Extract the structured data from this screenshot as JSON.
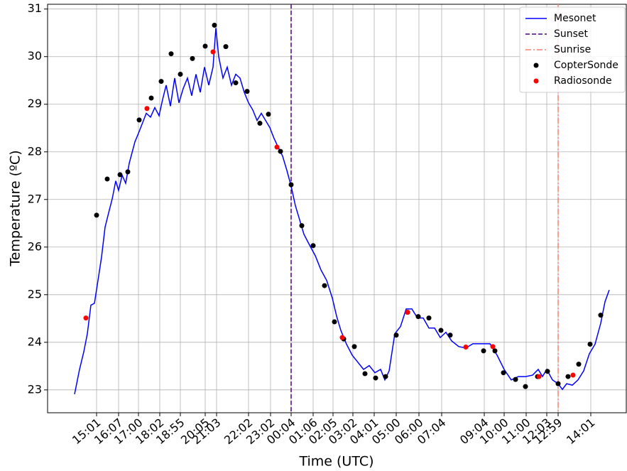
{
  "chart_data": {
    "type": "line",
    "xlabel": "Time (UTC)",
    "ylabel": "Temperature (ºC)",
    "xlim": [
      0,
      815
    ],
    "ylim": [
      22.52,
      31.1
    ],
    "xticks": [
      {
        "value": 69,
        "label": "15:01"
      },
      {
        "value": 100,
        "label": "16:07"
      },
      {
        "value": 128,
        "label": "17:00"
      },
      {
        "value": 158,
        "label": "18:02"
      },
      {
        "value": 187,
        "label": "18:55"
      },
      {
        "value": 222,
        "label": "20:05"
      },
      {
        "value": 238,
        "label": "21:03"
      },
      {
        "value": 283,
        "label": "22:02"
      },
      {
        "value": 314,
        "label": "23:02"
      },
      {
        "value": 343,
        "label": "00:04"
      },
      {
        "value": 374,
        "label": "01:06"
      },
      {
        "value": 402,
        "label": "02:05"
      },
      {
        "value": 430,
        "label": "03:02"
      },
      {
        "value": 460,
        "label": "04:01"
      },
      {
        "value": 491,
        "label": "05:00"
      },
      {
        "value": 523,
        "label": "06:00"
      },
      {
        "value": 555,
        "label": "07:04"
      },
      {
        "value": 615,
        "label": "09:04"
      },
      {
        "value": 643,
        "label": "10:00"
      },
      {
        "value": 674,
        "label": "11:00"
      },
      {
        "value": 703,
        "label": "12:03"
      },
      {
        "value": 719,
        "label": "12:59"
      },
      {
        "value": 765,
        "label": "14:01"
      }
    ],
    "yticks": [
      23,
      24,
      25,
      26,
      27,
      28,
      29,
      30,
      31
    ],
    "grid": true,
    "legend": "upper right",
    "series": [
      {
        "name": "Mesonet",
        "type": "line",
        "color": "#0000ff",
        "x": [
          38,
          45,
          51,
          56,
          61,
          66,
          71,
          76,
          81,
          86,
          91,
          96,
          100,
          105,
          110,
          115,
          123,
          128,
          133,
          139,
          145,
          151,
          157,
          162,
          167,
          173,
          179,
          185,
          191,
          197,
          203,
          209,
          215,
          221,
          227,
          233,
          237,
          241,
          247,
          253,
          259,
          265,
          271,
          277,
          283,
          289,
          295,
          301,
          307,
          313,
          319,
          325,
          331,
          337,
          343,
          349,
          355,
          361,
          369,
          377,
          385,
          393,
          401,
          407,
          413,
          421,
          429,
          437,
          445,
          453,
          461,
          469,
          475,
          481,
          489,
          497,
          505,
          513,
          521,
          529,
          537,
          545,
          553,
          561,
          569,
          579,
          589,
          599,
          609,
          623,
          633,
          643,
          653,
          663,
          673,
          683,
          691,
          697,
          703,
          711,
          719,
          725,
          731,
          739,
          747,
          755,
          763,
          771,
          779,
          785,
          791
        ],
        "values": [
          22.91,
          23.43,
          23.8,
          24.18,
          24.78,
          24.82,
          25.3,
          25.79,
          26.42,
          26.72,
          27.01,
          27.39,
          27.19,
          27.51,
          27.34,
          27.76,
          28.21,
          28.39,
          28.58,
          28.81,
          28.73,
          28.93,
          28.76,
          29.1,
          29.4,
          28.96,
          29.55,
          29.03,
          29.33,
          29.55,
          29.18,
          29.63,
          29.25,
          29.78,
          29.4,
          29.78,
          30.6,
          30.0,
          29.55,
          29.78,
          29.4,
          29.63,
          29.55,
          29.25,
          29.03,
          28.88,
          28.66,
          28.81,
          28.66,
          28.51,
          28.28,
          28.09,
          27.91,
          27.61,
          27.28,
          26.87,
          26.57,
          26.27,
          26.04,
          25.82,
          25.52,
          25.3,
          24.93,
          24.55,
          24.25,
          23.96,
          23.73,
          23.58,
          23.43,
          23.51,
          23.36,
          23.43,
          23.21,
          23.4,
          24.18,
          24.33,
          24.7,
          24.7,
          24.51,
          24.51,
          24.3,
          24.3,
          24.1,
          24.21,
          24.03,
          23.91,
          23.88,
          23.97,
          23.97,
          23.97,
          23.73,
          23.43,
          23.21,
          23.28,
          23.28,
          23.31,
          23.43,
          23.28,
          23.43,
          23.21,
          23.13,
          23.01,
          23.13,
          23.1,
          23.21,
          23.4,
          23.76,
          23.96,
          24.4,
          24.85,
          25.1
        ]
      },
      {
        "name": "CopterSonde",
        "type": "scatter",
        "color": "#000000",
        "x": [
          69,
          84,
          102,
          113,
          129,
          146,
          160,
          174,
          187,
          204,
          222,
          235,
          251,
          265,
          281,
          299,
          311,
          328,
          343,
          358,
          374,
          390,
          404,
          417,
          432,
          447,
          462,
          476,
          491,
          507,
          522,
          537,
          554,
          567,
          614,
          630,
          642,
          659,
          673,
          690,
          704,
          719,
          733,
          748,
          764,
          779
        ],
        "values": [
          26.67,
          27.43,
          27.52,
          27.58,
          28.67,
          29.13,
          29.48,
          30.06,
          29.63,
          29.96,
          30.22,
          30.66,
          30.21,
          29.45,
          29.27,
          28.6,
          28.79,
          28.01,
          27.31,
          26.45,
          26.03,
          25.19,
          24.43,
          24.07,
          23.91,
          23.34,
          23.25,
          23.28,
          24.15,
          24.63,
          24.54,
          24.51,
          24.25,
          24.15,
          23.82,
          23.82,
          23.36,
          23.22,
          23.07,
          23.28,
          23.39,
          23.13,
          23.28,
          23.54,
          23.96,
          24.57
        ]
      },
      {
        "name": "Radiosonde",
        "type": "scatter",
        "color": "#ff0000",
        "x": [
          54,
          140,
          233,
          323,
          415,
          507,
          589,
          627,
          692,
          740
        ],
        "values": [
          24.51,
          28.91,
          30.1,
          28.1,
          24.1,
          24.63,
          23.9,
          23.91,
          23.28,
          23.31
        ]
      }
    ],
    "vlines": [
      {
        "name": "Sunset",
        "x": 343,
        "color": "#4b0082",
        "style": "dashed"
      },
      {
        "name": "Sunrise",
        "x": 719,
        "color": "#fa8072",
        "style": "dashdot"
      }
    ]
  }
}
